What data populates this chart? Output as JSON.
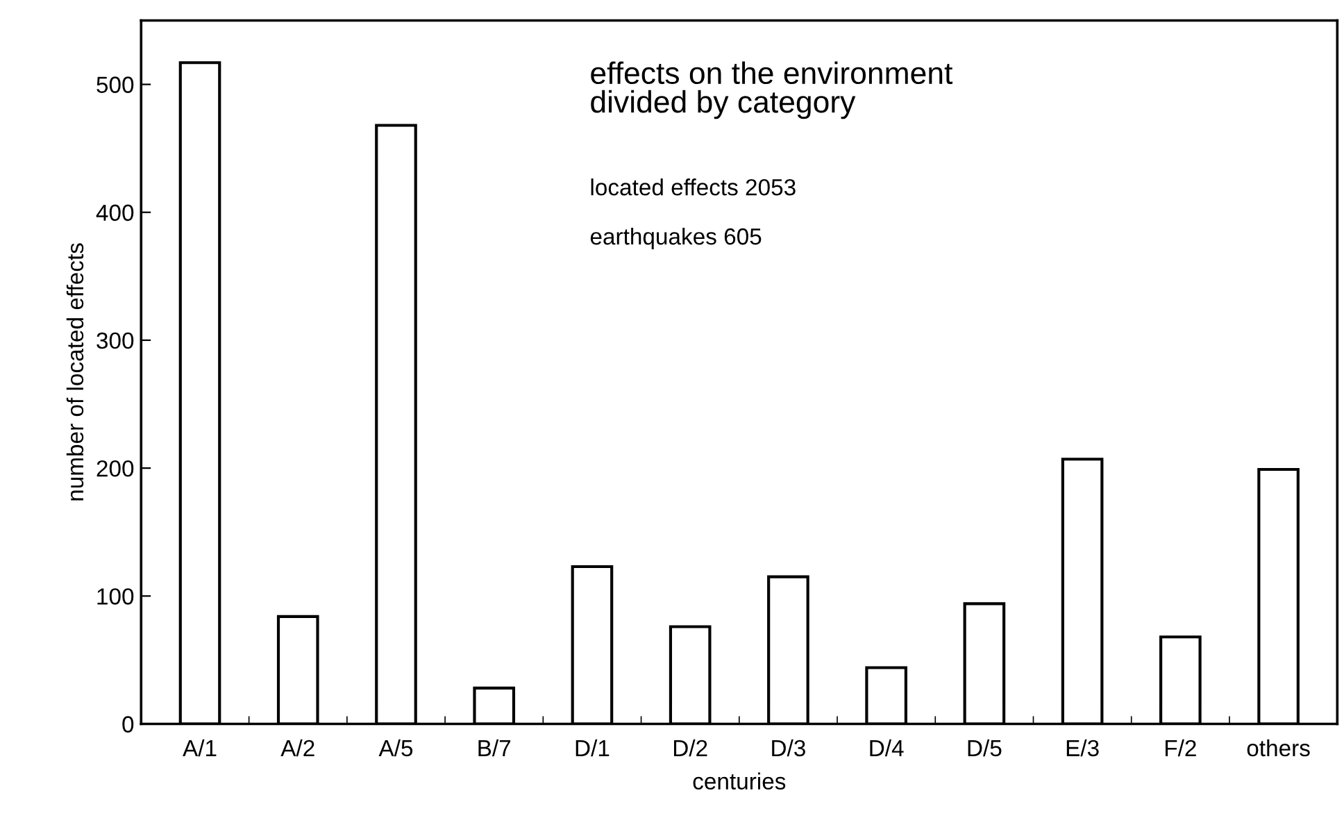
{
  "chart_data": {
    "type": "bar",
    "title": "effects on the environment\ndivided by category",
    "xlabel": "centuries",
    "ylabel": "number of located effects",
    "categories": [
      "A/1",
      "A/2",
      "A/5",
      "B/7",
      "D/1",
      "D/2",
      "D/3",
      "D/4",
      "D/5",
      "E/3",
      "F/2",
      "others"
    ],
    "values": [
      517,
      84,
      468,
      28,
      123,
      76,
      115,
      44,
      94,
      207,
      68,
      199
    ],
    "color": "#ffffff",
    "ylim": [
      0,
      550
    ],
    "yticks": [
      0,
      100,
      200,
      300,
      400,
      500
    ],
    "annotations": [
      "located effects 2053",
      "earthquakes 605"
    ],
    "grid": false,
    "legend": false
  }
}
